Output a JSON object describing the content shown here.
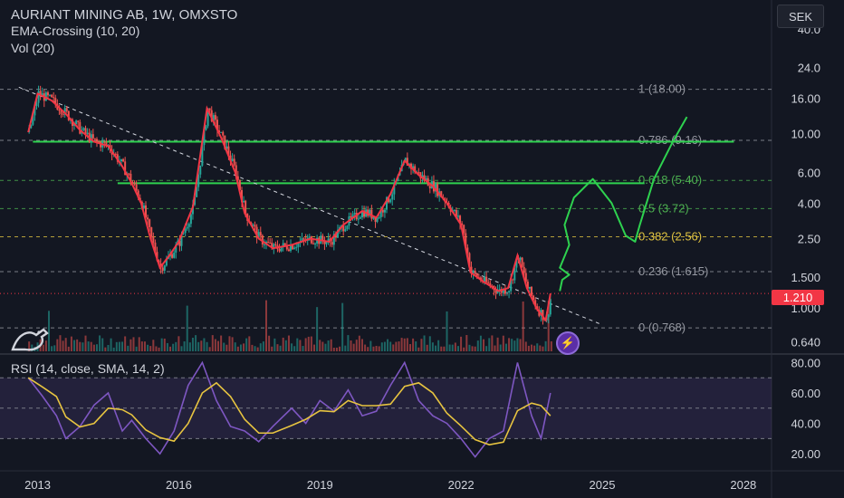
{
  "header": {
    "symbol_line": "AURIANT MINING AB, 1W, OMXSTO",
    "indicator_1": "EMA-Crossing (10, 20)",
    "indicator_2": "Vol (20)",
    "rsi_label": "RSI (14, close, SMA, 14, 2)",
    "currency_button": "SEK",
    "last_price": "1.210",
    "flash_icon": "lightning-icon",
    "logo_icon": "tradingview-logo-icon"
  },
  "colors": {
    "background": "#131722",
    "candle_up": "#26a69a",
    "candle_down": "#ef5350",
    "ema_red": "#f23645",
    "ema_green": "#4caf50",
    "fib_green": "#4caf50",
    "fib_yellow": "#e0c341",
    "rsi_line": "#7e57c2",
    "rsi_sma": "#e7c440",
    "drawing_green": "#2ed24f",
    "price_tag": "#f23645"
  },
  "chart_data": [
    {
      "type": "line",
      "scale": "log",
      "series_name": "price",
      "x_labels": [
        "2013",
        "2016",
        "2019",
        "2022",
        "2025",
        "2028"
      ],
      "x_range": [
        2012.2,
        2028.6
      ],
      "y_ticks": [
        "40.0",
        "24.0",
        "16.00",
        "10.00",
        "6.00",
        "4.00",
        "2.50",
        "1.500",
        "1.000",
        "0.640"
      ],
      "y_tick_values": [
        40,
        24,
        16,
        10,
        6,
        4,
        2.5,
        1.5,
        1.0,
        0.64
      ],
      "y_range_log": [
        0.55,
        52
      ],
      "price_points": [
        [
          2012.8,
          10.2
        ],
        [
          2013.0,
          17.0
        ],
        [
          2013.3,
          15.5
        ],
        [
          2013.6,
          13.0
        ],
        [
          2013.9,
          10.5
        ],
        [
          2014.2,
          9.0
        ],
        [
          2014.5,
          8.5
        ],
        [
          2014.8,
          6.5
        ],
        [
          2015.0,
          5.2
        ],
        [
          2015.2,
          4.0
        ],
        [
          2015.4,
          2.5
        ],
        [
          2015.6,
          1.7
        ],
        [
          2015.8,
          2.0
        ],
        [
          2016.0,
          2.4
        ],
        [
          2016.3,
          3.8
        ],
        [
          2016.6,
          14.0
        ],
        [
          2016.9,
          9.5
        ],
        [
          2017.2,
          6.0
        ],
        [
          2017.4,
          3.5
        ],
        [
          2017.7,
          2.5
        ],
        [
          2018.0,
          2.2
        ],
        [
          2018.4,
          2.3
        ],
        [
          2018.8,
          2.5
        ],
        [
          2019.2,
          2.4
        ],
        [
          2019.5,
          3.0
        ],
        [
          2019.9,
          3.6
        ],
        [
          2020.2,
          3.3
        ],
        [
          2020.5,
          4.5
        ],
        [
          2020.8,
          7.0
        ],
        [
          2021.1,
          5.8
        ],
        [
          2021.4,
          5.0
        ],
        [
          2021.7,
          4.0
        ],
        [
          2022.0,
          3.0
        ],
        [
          2022.2,
          1.6
        ],
        [
          2022.5,
          1.4
        ],
        [
          2022.8,
          1.25
        ],
        [
          2023.0,
          1.3
        ],
        [
          2023.2,
          2.0
        ],
        [
          2023.4,
          1.3
        ],
        [
          2023.6,
          1.0
        ],
        [
          2023.8,
          0.85
        ],
        [
          2023.9,
          1.21
        ]
      ],
      "last_price_value": 1.21
    },
    {
      "type": "line",
      "series_name": "fibonacci-retracement",
      "levels": [
        {
          "ratio": "1",
          "price": "(18.00)",
          "value": 18.0,
          "color": "#9598a1"
        },
        {
          "ratio": "0.786",
          "price": "(9.16)",
          "value": 9.16,
          "color": "#9598a1"
        },
        {
          "ratio": "0.618",
          "price": "(5.40)",
          "value": 5.4,
          "color": "#4caf50"
        },
        {
          "ratio": "0.5",
          "price": "(3.72)",
          "value": 3.72,
          "color": "#4caf50"
        },
        {
          "ratio": "0.382",
          "price": "(2.56)",
          "value": 2.56,
          "color": "#e0c341"
        },
        {
          "ratio": "0.236",
          "price": "(1.615)",
          "value": 1.615,
          "color": "#9598a1"
        },
        {
          "ratio": "0",
          "price": "(0.768)",
          "value": 0.768,
          "color": "#9598a1"
        }
      ],
      "horizontal_levels": [
        9.0,
        5.2
      ],
      "trendline": [
        [
          2012.6,
          18.5
        ],
        [
          2025.0,
          0.8
        ]
      ]
    },
    {
      "type": "line",
      "series_name": "rsi",
      "y_ticks": [
        "80.00",
        "60.00",
        "40.00",
        "20.00"
      ],
      "y_tick_values": [
        80,
        60,
        40,
        20
      ],
      "y_range": [
        10,
        85
      ],
      "band": [
        30,
        70
      ],
      "mid": 50,
      "rsi_points": [
        [
          2012.8,
          70
        ],
        [
          2013.1,
          58
        ],
        [
          2013.4,
          45
        ],
        [
          2013.6,
          30
        ],
        [
          2013.9,
          38
        ],
        [
          2014.2,
          52
        ],
        [
          2014.5,
          60
        ],
        [
          2014.8,
          35
        ],
        [
          2015.0,
          42
        ],
        [
          2015.3,
          30
        ],
        [
          2015.6,
          20
        ],
        [
          2015.9,
          35
        ],
        [
          2016.2,
          65
        ],
        [
          2016.5,
          80
        ],
        [
          2016.8,
          55
        ],
        [
          2017.1,
          38
        ],
        [
          2017.4,
          35
        ],
        [
          2017.7,
          28
        ],
        [
          2018.0,
          38
        ],
        [
          2018.4,
          50
        ],
        [
          2018.7,
          40
        ],
        [
          2019.0,
          55
        ],
        [
          2019.3,
          48
        ],
        [
          2019.6,
          62
        ],
        [
          2019.9,
          45
        ],
        [
          2020.2,
          48
        ],
        [
          2020.5,
          65
        ],
        [
          2020.8,
          80
        ],
        [
          2021.1,
          55
        ],
        [
          2021.4,
          45
        ],
        [
          2021.7,
          40
        ],
        [
          2022.0,
          30
        ],
        [
          2022.3,
          18
        ],
        [
          2022.6,
          30
        ],
        [
          2022.9,
          35
        ],
        [
          2023.2,
          80
        ],
        [
          2023.5,
          45
        ],
        [
          2023.7,
          30
        ],
        [
          2023.9,
          60
        ]
      ]
    }
  ]
}
